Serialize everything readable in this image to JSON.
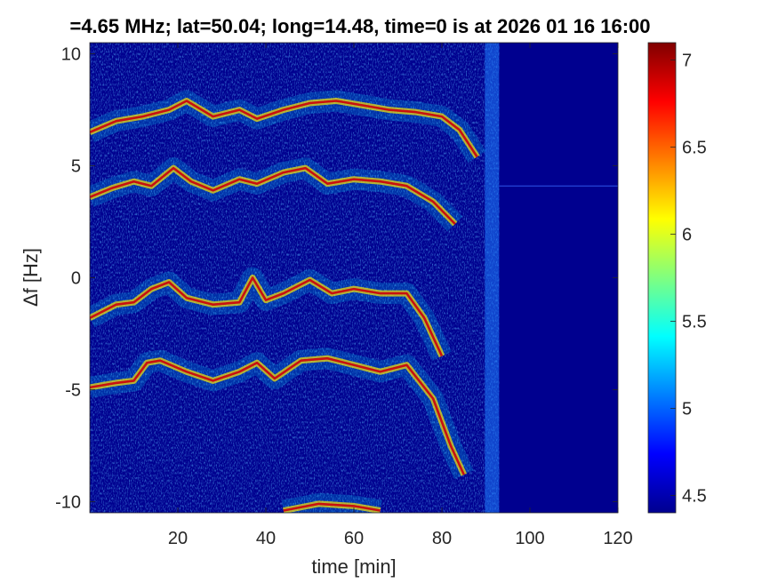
{
  "chart_data": {
    "type": "heatmap",
    "title": "=4.65 MHz;  lat=50.04; long=14.48, time=0 is at 2026 01 16 16:00",
    "xlabel": "time [min]",
    "ylabel": "Δf [Hz]",
    "xlim": [
      0,
      120
    ],
    "ylim": [
      -10.5,
      10.5
    ],
    "x_ticks": [
      20,
      40,
      60,
      80,
      100,
      120
    ],
    "x_tick_labels": [
      "20",
      "40",
      "60",
      "80",
      "100",
      "120"
    ],
    "y_ticks": [
      10,
      5,
      0,
      -5,
      -10
    ],
    "y_tick_labels": [
      "10",
      "5",
      "0",
      "-5",
      "-10"
    ],
    "colormap": "jet",
    "colorbar": {
      "range": [
        4.4,
        7.1
      ],
      "ticks": [
        7,
        6.5,
        6,
        5.5,
        5,
        4.5
      ],
      "tick_labels": [
        "7",
        "6.5",
        "6",
        "5.5",
        "5",
        "4.5"
      ]
    },
    "data_end_time": 93,
    "traces": [
      {
        "name": "",
        "points": [
          [
            0,
            6.5
          ],
          [
            6,
            7.0
          ],
          [
            12,
            7.2
          ],
          [
            18,
            7.5
          ],
          [
            22,
            7.9
          ],
          [
            28,
            7.2
          ],
          [
            34,
            7.5
          ],
          [
            38,
            7.1
          ],
          [
            44,
            7.5
          ],
          [
            50,
            7.8
          ],
          [
            56,
            7.9
          ],
          [
            62,
            7.7
          ],
          [
            68,
            7.5
          ],
          [
            74,
            7.4
          ],
          [
            80,
            7.2
          ],
          [
            84,
            6.6
          ],
          [
            88,
            5.4
          ]
        ]
      },
      {
        "name": "",
        "points": [
          [
            0,
            3.6
          ],
          [
            5,
            4.0
          ],
          [
            10,
            4.3
          ],
          [
            14,
            4.1
          ],
          [
            19,
            4.9
          ],
          [
            23,
            4.3
          ],
          [
            28,
            3.9
          ],
          [
            34,
            4.4
          ],
          [
            38,
            4.2
          ],
          [
            44,
            4.7
          ],
          [
            49,
            4.9
          ],
          [
            54,
            4.2
          ],
          [
            60,
            4.4
          ],
          [
            66,
            4.3
          ],
          [
            72,
            4.1
          ],
          [
            78,
            3.4
          ],
          [
            83,
            2.4
          ]
        ]
      },
      {
        "name": "",
        "points": [
          [
            0,
            -1.8
          ],
          [
            6,
            -1.2
          ],
          [
            10,
            -1.1
          ],
          [
            14,
            -0.5
          ],
          [
            18,
            -0.2
          ],
          [
            22,
            -0.9
          ],
          [
            28,
            -1.2
          ],
          [
            34,
            -1.1
          ],
          [
            37,
            0.0
          ],
          [
            40,
            -1.0
          ],
          [
            44,
            -0.7
          ],
          [
            50,
            -0.1
          ],
          [
            55,
            -0.7
          ],
          [
            60,
            -0.5
          ],
          [
            66,
            -0.7
          ],
          [
            72,
            -0.7
          ],
          [
            76,
            -1.8
          ],
          [
            80,
            -3.5
          ]
        ]
      },
      {
        "name": "",
        "points": [
          [
            0,
            -4.9
          ],
          [
            6,
            -4.7
          ],
          [
            10,
            -4.6
          ],
          [
            13,
            -3.8
          ],
          [
            16,
            -3.7
          ],
          [
            22,
            -4.2
          ],
          [
            28,
            -4.6
          ],
          [
            34,
            -4.2
          ],
          [
            38,
            -3.8
          ],
          [
            42,
            -4.5
          ],
          [
            48,
            -3.7
          ],
          [
            54,
            -3.6
          ],
          [
            60,
            -3.9
          ],
          [
            66,
            -4.2
          ],
          [
            72,
            -3.9
          ],
          [
            78,
            -5.4
          ],
          [
            82,
            -7.5
          ],
          [
            85,
            -8.8
          ]
        ]
      },
      {
        "name": "",
        "points": [
          [
            44,
            -10.4
          ],
          [
            52,
            -10.1
          ],
          [
            60,
            -10.2
          ],
          [
            66,
            -10.4
          ]
        ]
      }
    ],
    "grid": false,
    "legend": "none"
  }
}
